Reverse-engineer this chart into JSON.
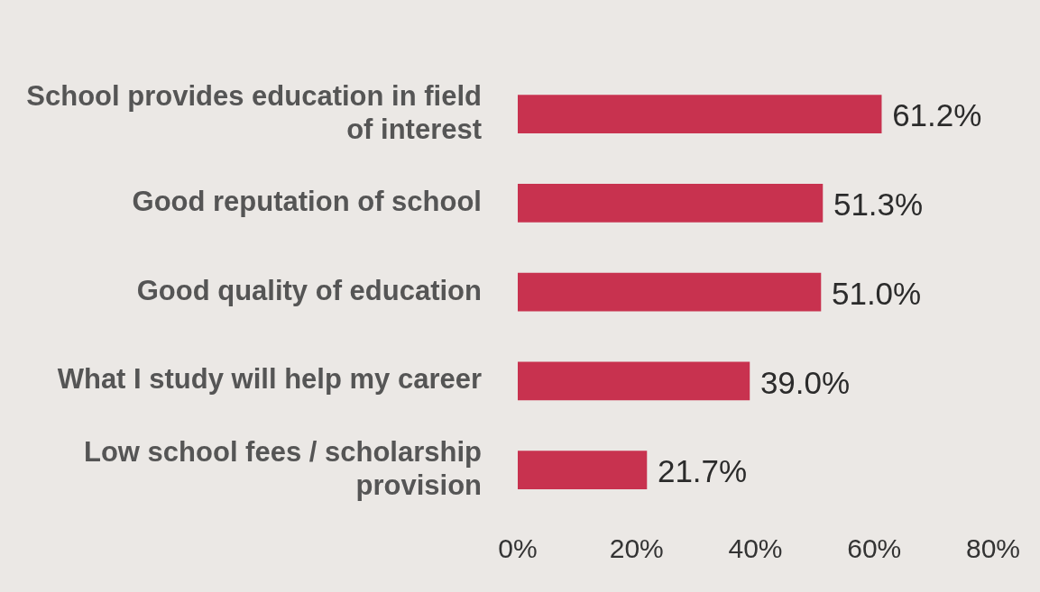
{
  "chart_data": {
    "type": "bar",
    "orientation": "horizontal",
    "categories": [
      "School provides education in field of interest",
      "Good reputation of school",
      "Good quality of education",
      "What I study will help my career",
      "Low school fees / scholarship provision"
    ],
    "values": [
      61.2,
      51.3,
      51.0,
      39.0,
      21.7
    ],
    "value_labels": [
      "61.2%",
      "51.3%",
      "51.0%",
      "39.0%",
      "21.7%"
    ],
    "color": "#c8324f",
    "xlim": [
      0,
      80
    ],
    "xticks": [
      {
        "value": 0,
        "label": "0%"
      },
      {
        "value": 20,
        "label": "20%"
      },
      {
        "value": 40,
        "label": "40%"
      },
      {
        "value": 60,
        "label": "60%"
      },
      {
        "value": 80,
        "label": "80%"
      }
    ],
    "grid": false,
    "legend": false
  }
}
